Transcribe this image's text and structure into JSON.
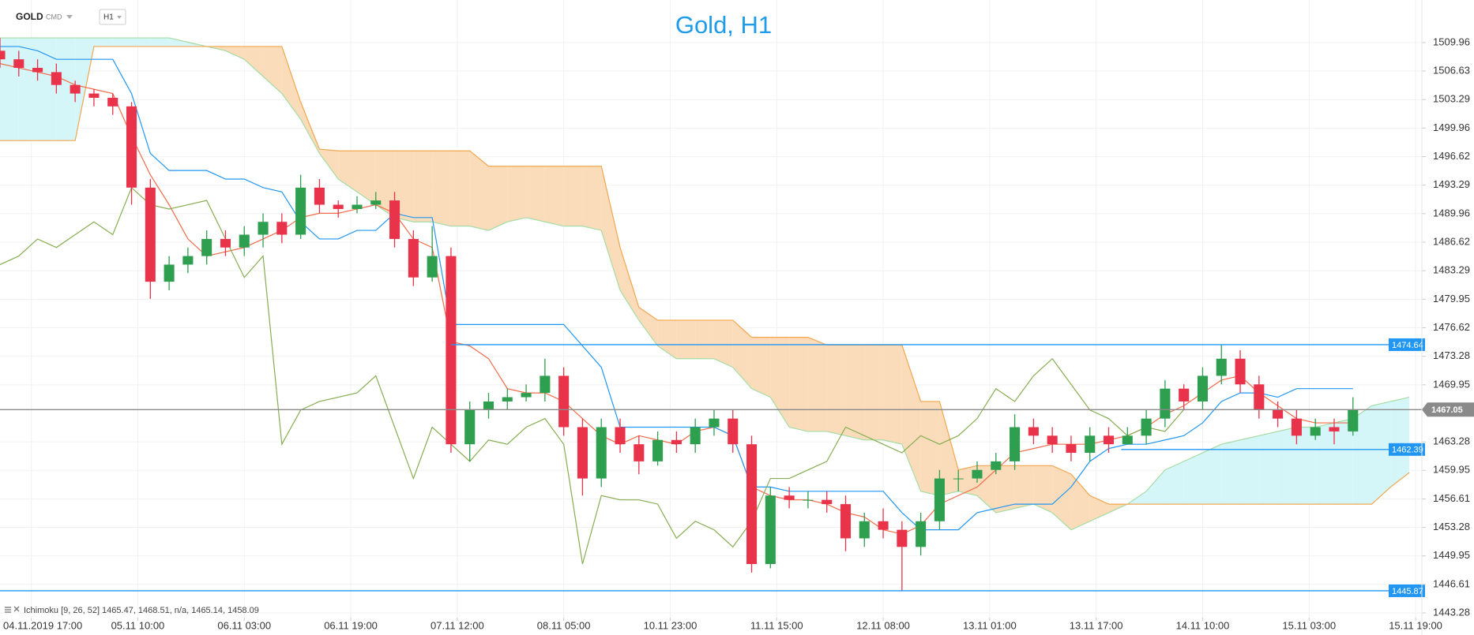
{
  "header": {
    "symbol": "GOLD",
    "market": "CMD",
    "timeframe": "H1"
  },
  "chart_data": {
    "type": "candlestick",
    "title": "Gold, H1",
    "x": [
      0,
      3,
      6,
      9,
      12,
      15,
      18,
      21,
      24,
      27,
      30,
      33,
      36,
      39,
      42,
      45,
      48,
      51,
      54,
      57,
      60,
      63,
      66,
      69,
      72,
      75,
      78,
      81,
      84,
      87,
      90,
      93,
      96,
      99,
      102,
      105,
      108,
      111,
      114,
      117,
      120,
      123,
      126,
      129,
      132,
      135,
      138,
      141,
      144,
      147,
      150,
      153,
      156,
      159,
      162,
      165,
      168,
      171,
      174,
      177,
      180,
      183,
      186,
      189,
      192,
      195,
      198,
      201,
      204,
      207,
      210,
      213,
      216,
      219,
      222,
      225
    ],
    "open": [
      1509,
      1508,
      1507,
      1506.5,
      1505,
      1504,
      1503.5,
      1502.5,
      1493,
      1482,
      1484,
      1485,
      1487,
      1486,
      1487.5,
      1489,
      1487.5,
      1493,
      1491,
      1490.5,
      1491,
      1491.5,
      1487,
      1482.5,
      1485,
      1463,
      1467,
      1468,
      1468.5,
      1469,
      1471,
      1465,
      1459,
      1465,
      1463,
      1461,
      1463.5,
      1463,
      1465,
      1466,
      1463,
      1449,
      1457,
      1456.5,
      1456.5,
      1456,
      1452,
      1454,
      1453,
      1451,
      1454,
      1459,
      1459,
      1460,
      1461,
      1465,
      1464,
      1463,
      1462,
      1464,
      1463,
      1464,
      1466,
      1469.5,
      1468,
      1471,
      1473,
      1470,
      1467,
      1466,
      1464,
      1465,
      1464.5,
      null,
      null,
      null
    ],
    "high": [
      1510.5,
      1509,
      1508,
      1507.5,
      1505.5,
      1504.5,
      1504,
      1503,
      1494,
      1485,
      1486,
      1488,
      1488,
      1488.5,
      1490,
      1490,
      1494.5,
      1494,
      1491.5,
      1492,
      1492.5,
      1492.5,
      1488,
      1488.5,
      1486,
      1468,
      1469,
      1469.5,
      1470,
      1473,
      1472,
      1466,
      1466,
      1466,
      1464,
      1464.5,
      1464.5,
      1466,
      1467,
      1467,
      1464,
      1458,
      1458,
      1457.5,
      1457.5,
      1457,
      1455,
      1455.5,
      1454,
      1455,
      1460,
      1460,
      1461,
      1462,
      1466.5,
      1466,
      1465,
      1464,
      1465,
      1465,
      1465,
      1467,
      1470.5,
      1470,
      1472,
      1474.6,
      1474,
      1471,
      1468,
      1467,
      1466,
      1466,
      1468.5,
      null,
      null,
      null
    ],
    "low": [
      1507,
      1506,
      1505.5,
      1504,
      1503,
      1502.5,
      1501.5,
      1491,
      1480,
      1481,
      1483,
      1484,
      1485,
      1485,
      1486,
      1486.5,
      1487,
      1490,
      1489.5,
      1490,
      1490.5,
      1486,
      1481.5,
      1482,
      1462,
      1461,
      1466,
      1467,
      1468,
      1468,
      1464,
      1457,
      1458,
      1462,
      1459.5,
      1460.5,
      1462,
      1462,
      1464,
      1462,
      1448,
      1448.5,
      1455.5,
      1455.5,
      1455,
      1450.5,
      1451,
      1452,
      1445.87,
      1450,
      1453,
      1457.5,
      1458.5,
      1459.5,
      1460,
      1463,
      1462,
      1461,
      1461,
      1462,
      1463,
      1463,
      1465,
      1467,
      1467,
      1470,
      1469,
      1466,
      1465,
      1463,
      1463.5,
      1463,
      1464,
      null,
      null,
      null
    ],
    "close": [
      1508,
      1507,
      1506.5,
      1505,
      1504,
      1503.5,
      1502.5,
      1493,
      1482,
      1484,
      1485,
      1487,
      1486,
      1487.5,
      1489,
      1487.5,
      1493,
      1491,
      1490.5,
      1491,
      1491.5,
      1487,
      1482.5,
      1485,
      1463,
      1467,
      1468,
      1468.5,
      1469,
      1471,
      1465,
      1459,
      1465,
      1463,
      1461,
      1463.5,
      1463,
      1465,
      1466,
      1463,
      1449,
      1457,
      1456.5,
      1456.5,
      1456,
      1452,
      1454,
      1453,
      1451,
      1454,
      1459,
      1459,
      1460,
      1461,
      1465,
      1464,
      1463,
      1462,
      1464,
      1463,
      1464,
      1466,
      1469.5,
      1468,
      1471,
      1473,
      1470,
      1467,
      1466,
      1464,
      1465,
      1464.5,
      1467.05,
      null,
      null,
      null
    ],
    "up_color": "#2e9e4f",
    "down_color": "#e8334a",
    "lines": [
      {
        "color": "#f26b4a",
        "values": [
          1507.5,
          1507,
          1506.5,
          1506,
          1505,
          1504.5,
          1504,
          1499,
          1494.5,
          1491,
          1487,
          1485,
          1485.5,
          1486,
          1487,
          1488,
          1489.5,
          1490,
          1490,
          1490.5,
          1491,
          1490,
          1487,
          1486,
          1475,
          1474.5,
          1473,
          1469.5,
          1469,
          1469,
          1468,
          1466,
          1464,
          1463,
          1464,
          1463.5,
          1463,
          1464.5,
          1465,
          1464,
          1458,
          1457,
          1456.5,
          1456.5,
          1456,
          1455,
          1454.5,
          1453,
          1452.5,
          1453.5,
          1456,
          1457,
          1458,
          1460,
          1462,
          1462.5,
          1463,
          1463,
          1463,
          1463.5,
          1464,
          1465,
          1466.5,
          1467.5,
          1469,
          1470.5,
          1471,
          1469,
          1467.5,
          1466,
          1465.5,
          1465.5,
          1465.5,
          null,
          null,
          null
        ]
      },
      {
        "color": "#2196f3",
        "values": [
          1509.5,
          1509.5,
          1509,
          1508,
          1508,
          1508,
          1508,
          1504,
          1497,
          1495,
          1495,
          1495,
          1494,
          1494,
          1493,
          1492.5,
          1489,
          1487,
          1487,
          1488,
          1488,
          1490,
          1489.5,
          1489.5,
          1477,
          1477,
          1477,
          1477,
          1477,
          1477,
          1477,
          1474.5,
          1472,
          1465,
          1465,
          1465,
          1465,
          1465,
          1465,
          1464,
          1458,
          1458,
          1457.5,
          1457.5,
          1457.5,
          1457.5,
          1457.5,
          1457.5,
          1455,
          1453,
          1453,
          1453,
          1455,
          1455.5,
          1456,
          1456,
          1456,
          1458,
          1461,
          1462.5,
          1463,
          1463,
          1463.5,
          1464,
          1465.5,
          1468,
          1469,
          1469,
          1468.5,
          1469.5,
          1469.5,
          1469.5,
          1469.5,
          null,
          null,
          null
        ]
      },
      {
        "color": "#86ad52",
        "values": [
          1484,
          1485,
          1487,
          1486,
          1487.5,
          1489,
          1487.5,
          1493,
          1491,
          1490.5,
          1491,
          1491.5,
          1487,
          1482.5,
          1485,
          1463,
          1467,
          1468,
          1468.5,
          1469,
          1471,
          1465,
          1459,
          1465,
          1463,
          1461,
          1463.5,
          1463,
          1465,
          1466,
          1463,
          1449,
          1457,
          1456.5,
          1456.5,
          1456,
          1452,
          1454,
          1453,
          1451,
          1454,
          1459,
          1459,
          1460,
          1461,
          1465,
          1464,
          1463,
          1462,
          1464,
          1463,
          1464,
          1466,
          1469.5,
          1468,
          1471,
          1473,
          1470,
          1467,
          1466,
          1464,
          1465,
          1464.5,
          1467.05,
          null,
          null,
          null,
          null,
          null,
          null,
          null,
          null,
          null,
          null,
          null,
          null
        ]
      }
    ],
    "cloud": {
      "up_fill": "#d5f6f9",
      "down_fill": "#fbdcba",
      "span_a": {
        "color": "#a6dca4",
        "values": [
          1510.5,
          1510.5,
          1510.5,
          1510.5,
          1510.5,
          1510.5,
          1510.5,
          1510.5,
          1510.5,
          1510.5,
          1510,
          1509.5,
          1509,
          1508,
          1506,
          1504,
          1501,
          1497,
          1494,
          1492.5,
          1491,
          1489.5,
          1489,
          1489,
          1488.5,
          1488.5,
          1488,
          1489,
          1489.5,
          1489,
          1488.5,
          1488.5,
          1488,
          1481,
          1477.5,
          1474.5,
          1473,
          1473,
          1473,
          1472,
          1469.5,
          1468.5,
          1465,
          1464.5,
          1464.5,
          1464,
          1463.5,
          1463.5,
          1463,
          1457.5,
          1457,
          1457.5,
          1457,
          1455,
          1455.5,
          1456,
          1455,
          1453,
          1454,
          1455,
          1456,
          1457.5,
          1460,
          1461,
          1462,
          1463,
          1463.5,
          1464,
          1464.5,
          1465,
          1465,
          1465.5,
          1466,
          1467.5,
          1468,
          1468.5
        ]
      },
      "span_b": {
        "color": "#f3a64e",
        "values": [
          1498.5,
          1498.5,
          1498.5,
          1498.5,
          1498.5,
          1509.5,
          1509.5,
          1509.5,
          1509.5,
          1509.5,
          1509.5,
          1509.5,
          1509.5,
          1509.5,
          1509.5,
          1509.5,
          1503,
          1497.5,
          1497.3,
          1497.3,
          1497.3,
          1497.3,
          1497.3,
          1497.3,
          1497.3,
          1497.3,
          1495.5,
          1495.5,
          1495.5,
          1495.5,
          1495.5,
          1495.5,
          1495.5,
          1486,
          1479,
          1477.5,
          1477.5,
          1477.5,
          1477.5,
          1477.5,
          1475.5,
          1475.5,
          1475.5,
          1475.5,
          1474.6,
          1474.6,
          1474.6,
          1474.6,
          1474.6,
          1468,
          1468,
          1460,
          1460.5,
          1460.5,
          1460.5,
          1460.5,
          1460.5,
          1459.5,
          1457,
          1456,
          1456,
          1456,
          1456,
          1456,
          1456,
          1456,
          1456,
          1456,
          1456,
          1456,
          1456,
          1456,
          1456,
          1456,
          1458,
          1459.7
        ]
      }
    },
    "indicator_label": "Ichimoku [9, 26, 52] 1465.47, 1468.51, n/a, 1465.14, 1458.09",
    "levels": [
      {
        "value": 1474.64,
        "color": "#2196f3",
        "start_x": 72
      },
      {
        "value": 1462.39,
        "color": "#2196f3",
        "start_x": 179
      },
      {
        "value": 1445.87,
        "color": "#2196f3",
        "start_x": 0
      },
      {
        "value": 1467.05,
        "color": "#8a8a8a",
        "start_x": 0,
        "current": true
      }
    ],
    "xlim": [
      0,
      227
    ],
    "ylim": [
      1442.73,
      1511.06
    ],
    "xticks": [
      {
        "value": 5,
        "label": "04.11.2019 17:00"
      },
      {
        "value": 22,
        "label": "05.11 10:00"
      },
      {
        "value": 39,
        "label": "06.11 03:00"
      },
      {
        "value": 56,
        "label": "06.11 19:00"
      },
      {
        "value": 73,
        "label": "07.11 12:00"
      },
      {
        "value": 90,
        "label": "08.11 05:00"
      },
      {
        "value": 107,
        "label": "10.11 23:00"
      },
      {
        "value": 124,
        "label": "11.11 15:00"
      },
      {
        "value": 141,
        "label": "12.11 08:00"
      },
      {
        "value": 158,
        "label": "13.11 01:00"
      },
      {
        "value": 175,
        "label": "13.11 17:00"
      },
      {
        "value": 192,
        "label": "14.11 10:00"
      },
      {
        "value": 209,
        "label": "15.11 03:00"
      },
      {
        "value": 226,
        "label": "15.11 19:00"
      }
    ],
    "yticks": [
      1509.96,
      1506.63,
      1503.29,
      1499.96,
      1496.62,
      1493.29,
      1489.96,
      1486.62,
      1483.29,
      1479.95,
      1476.62,
      1473.28,
      1469.95,
      1463.28,
      1459.95,
      1456.61,
      1453.28,
      1449.95,
      1446.61,
      1443.28
    ],
    "grid": true
  }
}
